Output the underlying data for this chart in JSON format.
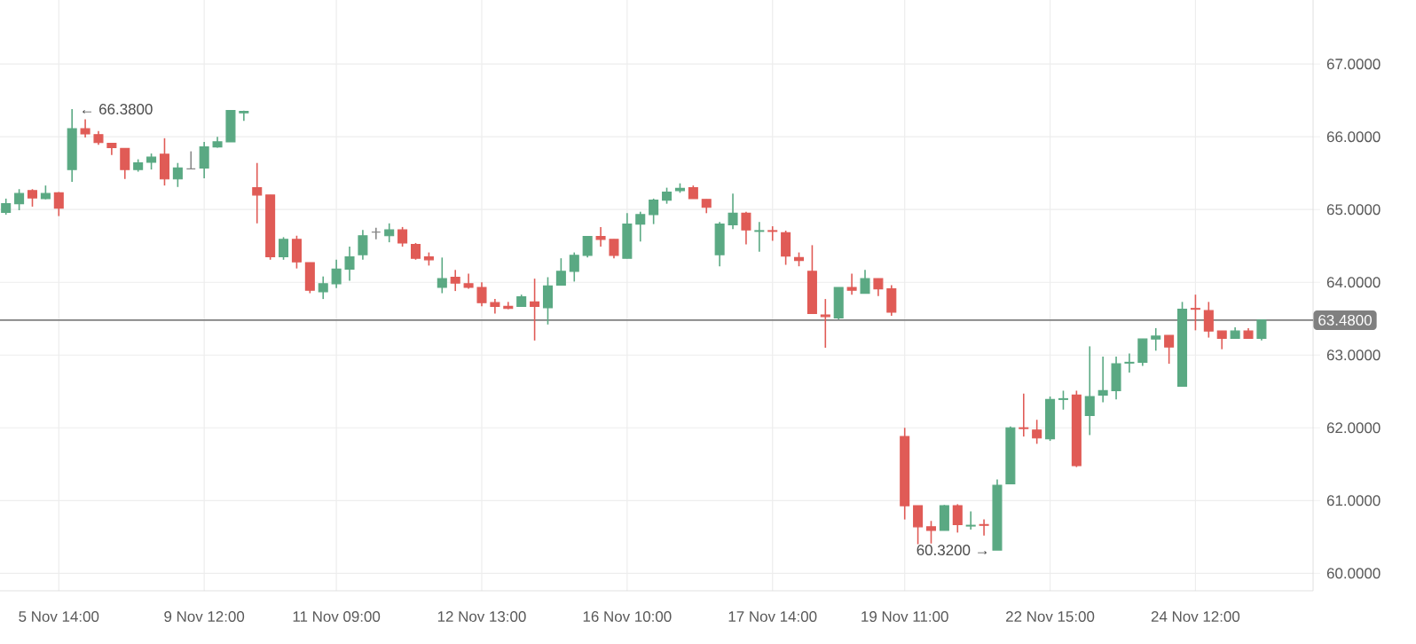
{
  "chart_data": {
    "type": "candlestick",
    "categories": [
      null,
      null,
      null,
      null,
      "5 Nov 14:00",
      null,
      null,
      null,
      null,
      null,
      null,
      null,
      null,
      null,
      null,
      "9 Nov 12:00",
      null,
      null,
      null,
      null,
      null,
      null,
      null,
      null,
      null,
      "11 Nov 09:00",
      null,
      null,
      null,
      null,
      null,
      null,
      null,
      null,
      null,
      null,
      "12 Nov 13:00",
      null,
      null,
      null,
      null,
      null,
      null,
      null,
      null,
      null,
      null,
      "16 Nov 10:00",
      null,
      null,
      null,
      null,
      null,
      null,
      null,
      null,
      null,
      null,
      "17 Nov 14:00",
      null,
      null,
      null,
      null,
      null,
      null,
      null,
      null,
      null,
      "19 Nov 11:00",
      null,
      null,
      null,
      null,
      null,
      null,
      null,
      null,
      null,
      null,
      "22 Nov 15:00",
      null,
      null,
      null,
      null,
      null,
      null,
      null,
      null,
      null,
      null,
      "24 Nov 12:00",
      null,
      null,
      null,
      null,
      null
    ],
    "ohlc": [
      [
        64.96,
        65.15,
        64.93,
        65.08
      ],
      [
        65.08,
        65.28,
        64.99,
        65.22
      ],
      [
        65.26,
        65.28,
        65.04,
        65.16
      ],
      [
        65.15,
        65.33,
        65.14,
        65.22
      ],
      [
        65.23,
        65.24,
        64.91,
        65.02
      ],
      [
        65.55,
        66.38,
        65.38,
        66.11
      ],
      [
        66.11,
        66.24,
        65.99,
        66.04
      ],
      [
        66.03,
        66.08,
        65.89,
        65.92
      ],
      [
        65.91,
        65.91,
        65.75,
        65.85
      ],
      [
        65.84,
        65.84,
        65.42,
        65.55
      ],
      [
        65.55,
        65.69,
        65.52,
        65.64
      ],
      [
        65.65,
        65.77,
        65.55,
        65.72
      ],
      [
        65.76,
        65.98,
        65.33,
        65.42
      ],
      [
        65.42,
        65.64,
        65.31,
        65.57
      ],
      [
        65.56,
        65.8,
        65.56,
        65.56
      ],
      [
        65.57,
        65.93,
        65.43,
        65.86
      ],
      [
        65.86,
        66.0,
        65.85,
        65.93
      ],
      [
        65.93,
        66.36,
        65.93,
        66.36
      ],
      [
        66.33,
        66.36,
        66.22,
        66.35
      ],
      [
        65.3,
        65.64,
        64.81,
        65.2
      ],
      [
        65.2,
        65.2,
        64.31,
        64.35
      ],
      [
        64.35,
        64.62,
        64.31,
        64.59
      ],
      [
        64.59,
        64.64,
        64.19,
        64.28
      ],
      [
        64.27,
        64.27,
        63.85,
        63.89
      ],
      [
        63.87,
        64.08,
        63.77,
        63.98
      ],
      [
        63.98,
        64.31,
        63.92,
        64.18
      ],
      [
        64.18,
        64.49,
        64.02,
        64.35
      ],
      [
        64.38,
        64.72,
        64.31,
        64.64
      ],
      [
        64.69,
        64.75,
        64.59,
        64.69
      ],
      [
        64.64,
        64.81,
        64.55,
        64.72
      ],
      [
        64.72,
        64.76,
        64.49,
        64.54
      ],
      [
        64.52,
        64.54,
        64.31,
        64.33
      ],
      [
        64.35,
        64.41,
        64.23,
        64.31
      ],
      [
        63.93,
        64.34,
        63.85,
        64.05
      ],
      [
        64.07,
        64.17,
        63.88,
        63.99
      ],
      [
        63.98,
        64.12,
        63.91,
        63.93
      ],
      [
        63.93,
        64.0,
        63.67,
        63.72
      ],
      [
        63.72,
        63.77,
        63.57,
        63.67
      ],
      [
        63.67,
        63.73,
        63.63,
        63.64
      ],
      [
        63.67,
        63.83,
        63.67,
        63.8
      ],
      [
        63.73,
        64.05,
        63.2,
        63.67
      ],
      [
        63.65,
        64.07,
        63.42,
        63.95
      ],
      [
        63.96,
        64.33,
        63.96,
        64.15
      ],
      [
        64.15,
        64.41,
        64.01,
        64.37
      ],
      [
        64.37,
        64.63,
        64.34,
        64.63
      ],
      [
        64.63,
        64.76,
        64.49,
        64.59
      ],
      [
        64.59,
        64.59,
        64.33,
        64.37
      ],
      [
        64.33,
        64.95,
        64.33,
        64.8
      ],
      [
        64.8,
        64.97,
        64.56,
        64.93
      ],
      [
        64.93,
        65.15,
        64.8,
        65.13
      ],
      [
        65.13,
        65.3,
        65.08,
        65.24
      ],
      [
        65.26,
        65.36,
        65.23,
        65.29
      ],
      [
        65.3,
        65.33,
        65.15,
        65.15
      ],
      [
        65.14,
        65.14,
        64.95,
        65.03
      ],
      [
        64.38,
        64.83,
        64.22,
        64.8
      ],
      [
        64.79,
        65.22,
        64.73,
        64.95
      ],
      [
        64.95,
        64.97,
        64.52,
        64.72
      ],
      [
        64.7,
        64.83,
        64.42,
        64.71
      ],
      [
        64.71,
        64.77,
        64.57,
        64.7
      ],
      [
        64.68,
        64.71,
        64.24,
        64.36
      ],
      [
        64.34,
        64.41,
        64.22,
        64.3
      ],
      [
        64.15,
        64.51,
        63.57,
        63.57
      ],
      [
        63.55,
        63.77,
        63.1,
        63.53
      ],
      [
        63.51,
        63.93,
        63.49,
        63.93
      ],
      [
        63.93,
        64.12,
        63.83,
        63.89
      ],
      [
        63.85,
        64.17,
        63.85,
        64.05
      ],
      [
        64.05,
        64.05,
        63.81,
        63.91
      ],
      [
        63.91,
        63.96,
        63.54,
        63.59
      ],
      [
        61.88,
        62.0,
        60.74,
        60.93
      ],
      [
        60.93,
        60.93,
        60.4,
        60.64
      ],
      [
        60.64,
        60.72,
        60.41,
        60.59
      ],
      [
        60.59,
        60.94,
        60.59,
        60.93
      ],
      [
        60.93,
        60.95,
        60.56,
        60.67
      ],
      [
        60.65,
        60.85,
        60.6,
        60.66
      ],
      [
        60.67,
        60.74,
        60.52,
        60.66
      ],
      [
        60.32,
        61.29,
        60.32,
        61.21
      ],
      [
        61.23,
        62.02,
        61.23,
        62.0
      ],
      [
        62.0,
        62.47,
        61.88,
        61.99
      ],
      [
        61.97,
        62.11,
        61.78,
        61.86
      ],
      [
        61.85,
        62.43,
        61.82,
        62.39
      ],
      [
        62.39,
        62.51,
        62.25,
        62.4
      ],
      [
        62.45,
        62.51,
        61.46,
        61.48
      ],
      [
        62.17,
        63.12,
        61.9,
        62.43
      ],
      [
        62.45,
        62.98,
        62.35,
        62.51
      ],
      [
        62.51,
        62.98,
        62.39,
        62.88
      ],
      [
        62.89,
        63.02,
        62.76,
        62.9
      ],
      [
        62.9,
        63.22,
        62.85,
        63.22
      ],
      [
        63.22,
        63.37,
        63.06,
        63.26
      ],
      [
        63.27,
        63.27,
        62.88,
        63.11
      ],
      [
        62.57,
        63.73,
        62.57,
        63.63
      ],
      [
        63.64,
        63.83,
        63.34,
        63.63
      ],
      [
        63.61,
        63.73,
        63.24,
        63.33
      ],
      [
        63.33,
        63.33,
        63.08,
        63.23
      ],
      [
        63.23,
        63.38,
        63.23,
        63.33
      ],
      [
        63.33,
        63.37,
        63.23,
        63.23
      ],
      [
        63.23,
        63.49,
        63.2,
        63.48
      ]
    ],
    "colors": [
      "#5aa983",
      "#5aa983",
      "#e05b56",
      "#5aa983",
      "#e05b56",
      "#5aa983",
      "#e05b56",
      "#e05b56",
      "#e05b56",
      "#e05b56",
      "#5aa983",
      "#5aa983",
      "#e05b56",
      "#5aa983",
      "#888888",
      "#5aa983",
      "#5aa983",
      "#5aa983",
      "#5aa983",
      "#e05b56",
      "#e05b56",
      "#5aa983",
      "#e05b56",
      "#e05b56",
      "#5aa983",
      "#5aa983",
      "#5aa983",
      "#5aa983",
      "#888888",
      "#5aa983",
      "#e05b56",
      "#e05b56",
      "#e05b56",
      "#5aa983",
      "#e05b56",
      "#e05b56",
      "#e05b56",
      "#e05b56",
      "#e05b56",
      "#5aa983",
      "#e05b56",
      "#5aa983",
      "#5aa983",
      "#5aa983",
      "#5aa983",
      "#e05b56",
      "#e05b56",
      "#5aa983",
      "#5aa983",
      "#5aa983",
      "#5aa983",
      "#5aa983",
      "#e05b56",
      "#e05b56",
      "#5aa983",
      "#5aa983",
      "#e05b56",
      "#5aa983",
      "#e05b56",
      "#e05b56",
      "#e05b56",
      "#e05b56",
      "#e05b56",
      "#5aa983",
      "#e05b56",
      "#5aa983",
      "#e05b56",
      "#e05b56",
      "#e05b56",
      "#e05b56",
      "#e05b56",
      "#5aa983",
      "#e05b56",
      "#5aa983",
      "#e05b56",
      "#5aa983",
      "#5aa983",
      "#e05b56",
      "#e05b56",
      "#5aa983",
      "#5aa983",
      "#e05b56",
      "#5aa983",
      "#5aa983",
      "#5aa983",
      "#5aa983",
      "#5aa983",
      "#5aa983",
      "#e05b56",
      "#5aa983",
      "#e05b56",
      "#e05b56",
      "#e05b56",
      "#5aa983",
      "#e05b56",
      "#5aa983"
    ],
    "ylim": [
      59.76,
      67.88
    ],
    "yticks": [
      {
        "value": 60,
        "label": "60.0000"
      },
      {
        "value": 61,
        "label": "61.0000"
      },
      {
        "value": 62,
        "label": "62.0000"
      },
      {
        "value": 63,
        "label": "63.0000"
      },
      {
        "value": 64,
        "label": "64.0000"
      },
      {
        "value": 65,
        "label": "65.0000"
      },
      {
        "value": 66,
        "label": "66.0000"
      },
      {
        "value": 67,
        "label": "67.0000"
      }
    ],
    "grid": true,
    "ref_lines": [
      {
        "axis": "y",
        "value": 63.48,
        "label": "63.4800",
        "color": "#808080"
      }
    ],
    "annotations": [
      "← 66.3800",
      "60.3200 →"
    ]
  }
}
